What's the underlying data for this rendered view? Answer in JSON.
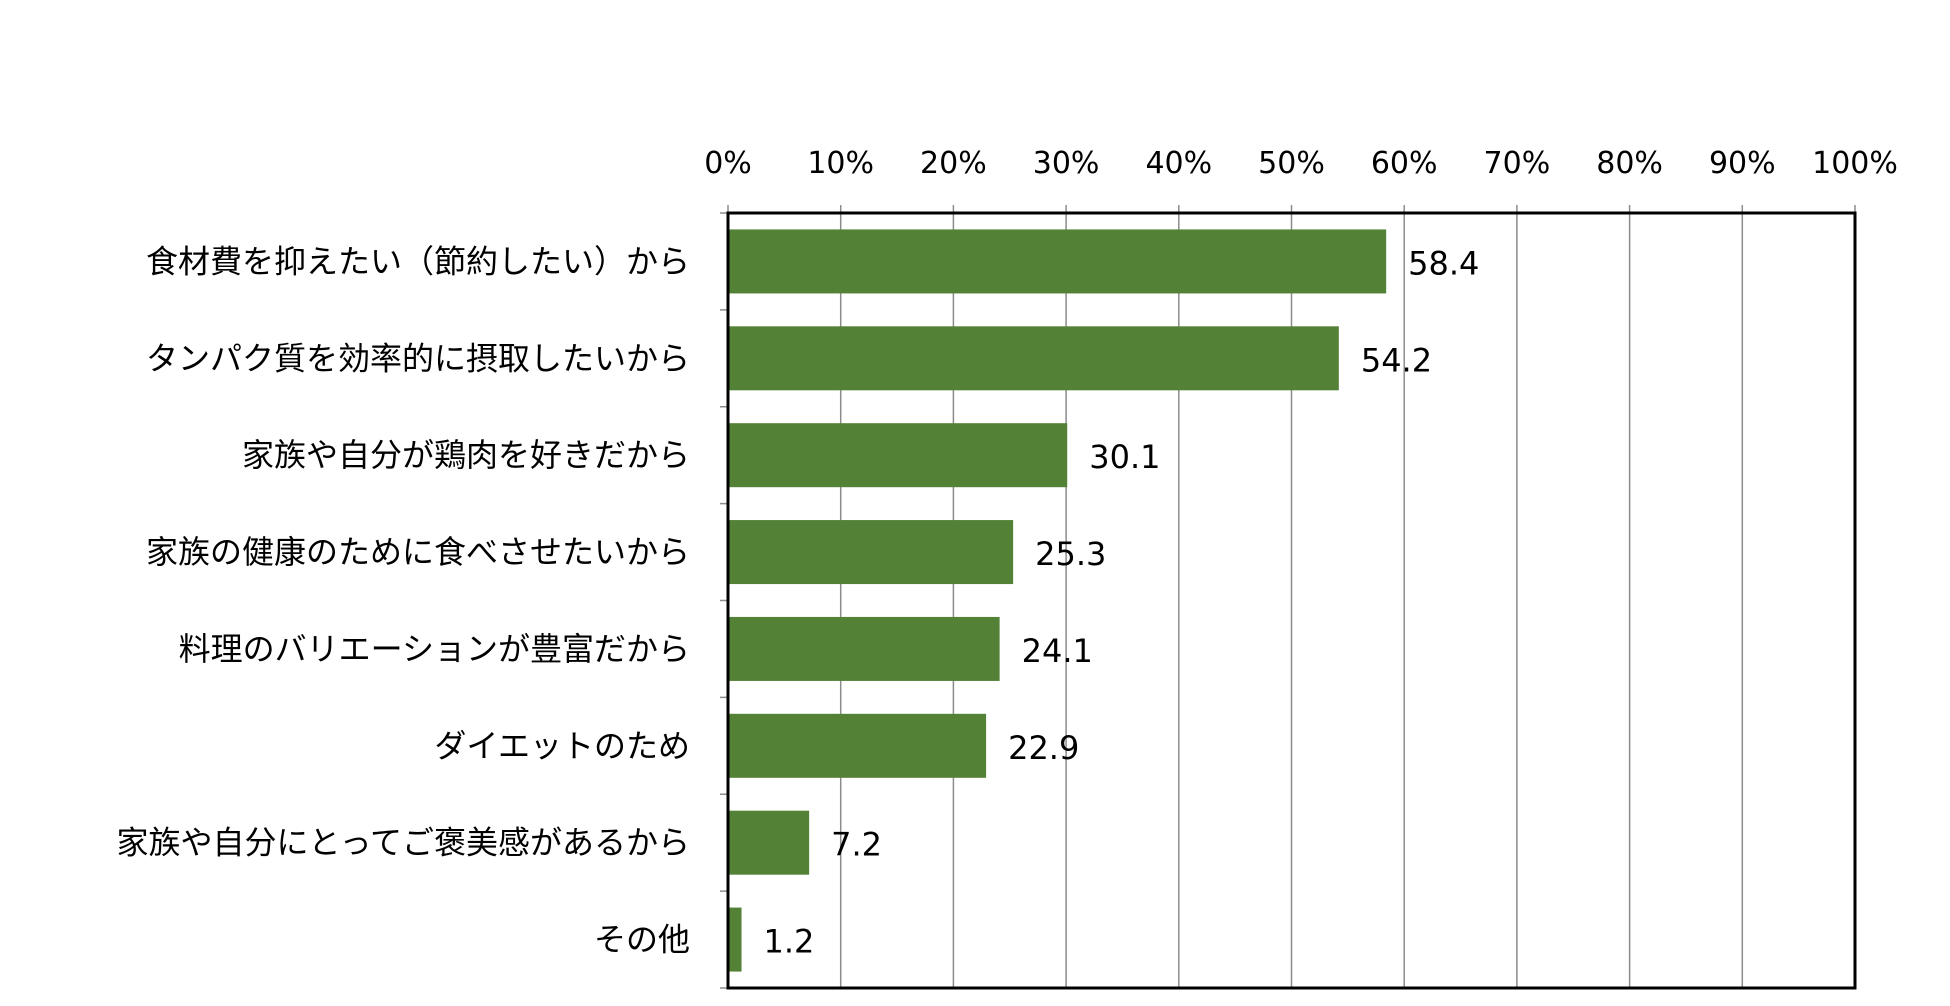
{
  "chart_data": {
    "type": "bar",
    "orientation": "horizontal",
    "categories": [
      "食材費を抑えたい（節約したい）から",
      "タンパク質を効率的に摂取したいから",
      "家族や自分が鶏肉を好きだから",
      "家族の健康のために食べさせたいから",
      "料理のバリエーションが豊富だから",
      "ダイエットのため",
      "家族や自分にとってご褒美感があるから",
      "その他"
    ],
    "values": [
      58.4,
      54.2,
      30.1,
      25.3,
      24.1,
      22.9,
      7.2,
      1.2
    ],
    "value_labels": [
      "58.4",
      "54.2",
      "30.1",
      "25.3",
      "24.1",
      "22.9",
      "7.2",
      "1.2"
    ],
    "xlim": [
      0,
      100
    ],
    "x_ticks": [
      0,
      10,
      20,
      30,
      40,
      50,
      60,
      70,
      80,
      90,
      100
    ],
    "x_tick_labels": [
      "0%",
      "10%",
      "20%",
      "30%",
      "40%",
      "50%",
      "60%",
      "70%",
      "80%",
      "90%",
      "100%"
    ],
    "x_axis_position": "top",
    "grid": true,
    "legend": false,
    "title": "",
    "xlabel": "",
    "ylabel": "",
    "colors": {
      "bar": "#538135",
      "grid": "#8c8c8c",
      "frame": "#000000"
    }
  }
}
